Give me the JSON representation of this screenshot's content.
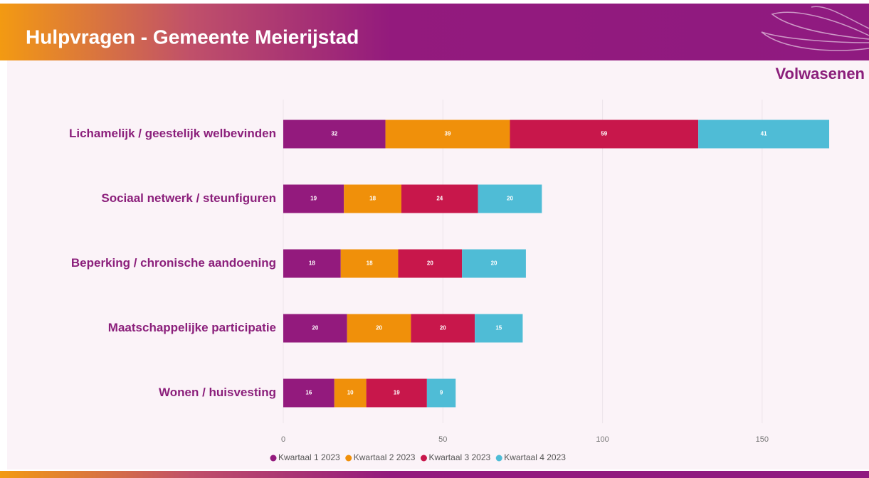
{
  "chart_data": {
    "type": "bar",
    "orientation": "horizontal",
    "stacked": true,
    "title": "Hulpvragen - Gemeente Meierijstad",
    "subtitle": "Volwasenen",
    "categories": [
      "Lichamelijk / geestelijk welbevinden",
      "Sociaal netwerk / steunfiguren",
      "Beperking / chronische aandoening",
      "Maatschappelijke participatie",
      "Wonen / huisvesting"
    ],
    "series": [
      {
        "name": "Kwartaal 1 2023",
        "color": "#931a7d",
        "values": [
          32,
          19,
          18,
          20,
          16
        ]
      },
      {
        "name": "Kwartaal 2 2023",
        "color": "#f0900a",
        "values": [
          39,
          18,
          18,
          20,
          10
        ]
      },
      {
        "name": "Kwartaal 3 2023",
        "color": "#c8174b",
        "values": [
          59,
          24,
          20,
          20,
          19
        ]
      },
      {
        "name": "Kwartaal 4 2023",
        "color": "#4fbcd6",
        "values": [
          41,
          20,
          20,
          15,
          9
        ]
      }
    ],
    "xlim": [
      0,
      175
    ],
    "xticks": [
      0,
      50,
      100,
      150
    ],
    "grid": true,
    "legend": "bottom"
  }
}
